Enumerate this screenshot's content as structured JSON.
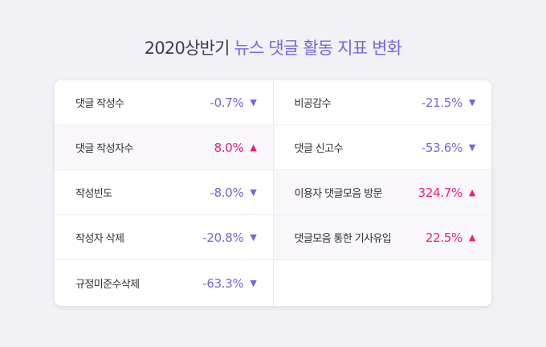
{
  "title": {
    "prefix": "2020상반기 ",
    "accent": "뉴스 댓글 활동 지표 변화"
  },
  "colors": {
    "background": "#f1f1f6",
    "card": "#ffffff",
    "decrease": "#7b63df",
    "increase": "#ec1d7e",
    "title_accent": "#7d63e0",
    "highlight_row": "#faf7fa"
  },
  "left_column": [
    {
      "label": "댓글 작성수",
      "value": "-0.7%",
      "direction": "down",
      "arrow": "▼"
    },
    {
      "label": "댓글 작성자수",
      "value": "8.0%",
      "direction": "up",
      "arrow": "▲"
    },
    {
      "label": "작성빈도",
      "value": "-8.0%",
      "direction": "down",
      "arrow": "▼"
    },
    {
      "label": "작성자 삭제",
      "value": "-20.8%",
      "direction": "down",
      "arrow": "▼"
    },
    {
      "label": "규정미준수삭제",
      "value": "-63.3%",
      "direction": "down",
      "arrow": "▼"
    }
  ],
  "right_column": [
    {
      "label": "비공감수",
      "value": "-21.5%",
      "direction": "down",
      "arrow": "▼"
    },
    {
      "label": "댓글 신고수",
      "value": "-53.6%",
      "direction": "down",
      "arrow": "▼"
    },
    {
      "label": "이용자 댓글모음 방문",
      "value": "324.7%",
      "direction": "up",
      "arrow": "▲"
    },
    {
      "label": "댓글모음 통한 기사유입",
      "value": "22.5%",
      "direction": "up",
      "arrow": "▲"
    }
  ]
}
